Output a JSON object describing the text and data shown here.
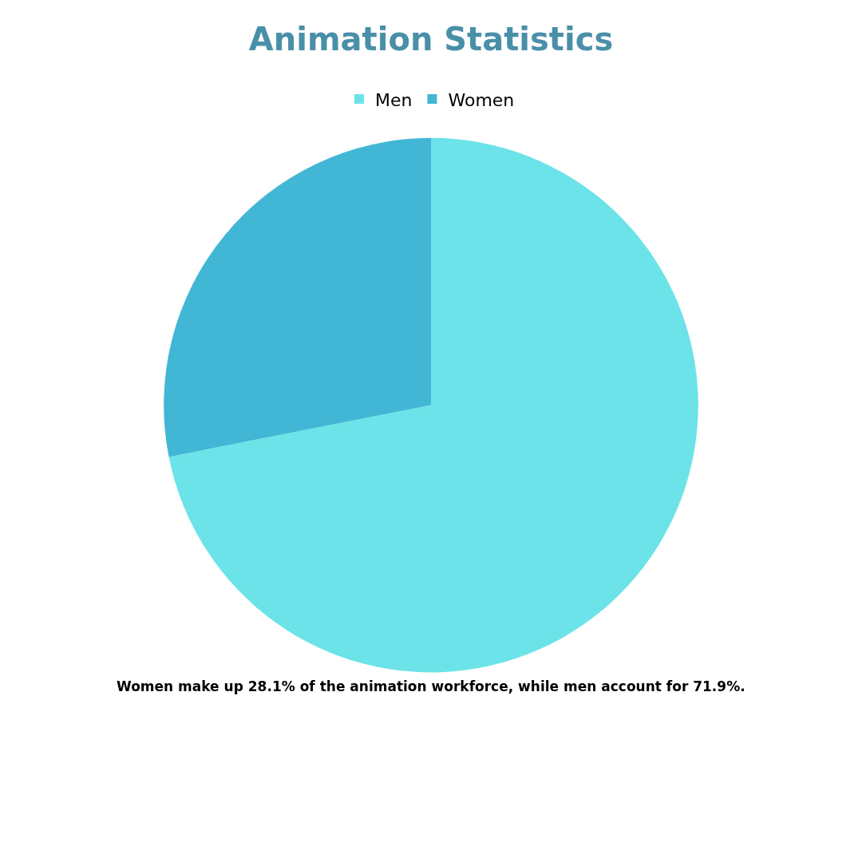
{
  "chart_data": {
    "type": "pie",
    "title": "Animation Statistics",
    "categories": [
      "Men",
      "Women"
    ],
    "values": [
      71.9,
      28.1
    ],
    "colors": [
      "#6ce3e8",
      "#42b6d5"
    ],
    "legend": "top",
    "annotations": [
      "Women make up 28.1% of the animation workforce, while men account for 71.9%."
    ]
  }
}
